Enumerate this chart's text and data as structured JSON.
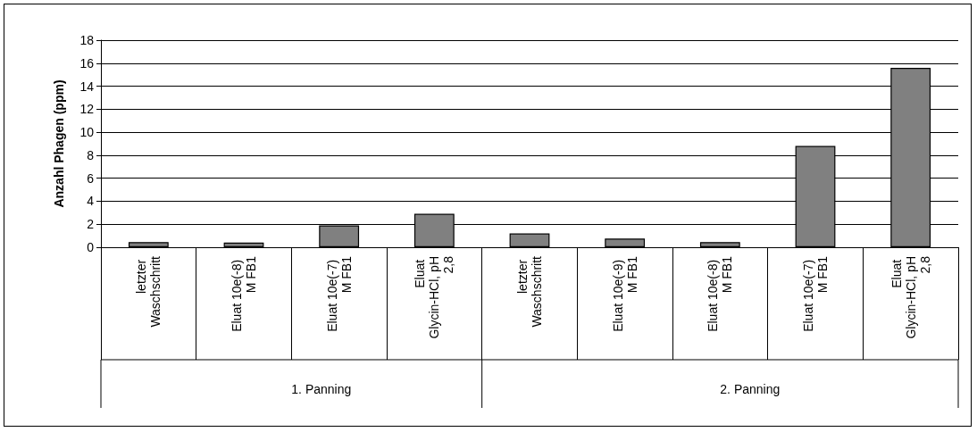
{
  "chart_data": {
    "type": "bar",
    "ylabel": "Anzahl Phagen (ppm)",
    "categories": [
      "letzter Waschschritt",
      "Eluat 10e(-8) M FB1",
      "Eluat 10e(-7) M FB1",
      "Eluat Glycin-HCl, pH 2,8",
      "letzter Waschschritt",
      "Eluat 10e(-9) M FB1",
      "Eluat 10e(-8) M FB1",
      "Eluat 10e(-7) M FB1",
      "Eluat Glycin-HCl, pH 2,8"
    ],
    "values": [
      0.45,
      0.4,
      1.9,
      2.9,
      1.2,
      0.75,
      0.45,
      8.8,
      15.6
    ],
    "color": "#808080",
    "ylim": [
      0,
      18
    ],
    "yticks": [
      0,
      2,
      4,
      6,
      8,
      10,
      12,
      14,
      16,
      18
    ],
    "grid": "y",
    "annotations": [
      "1. Panning",
      "2. Panning"
    ]
  }
}
